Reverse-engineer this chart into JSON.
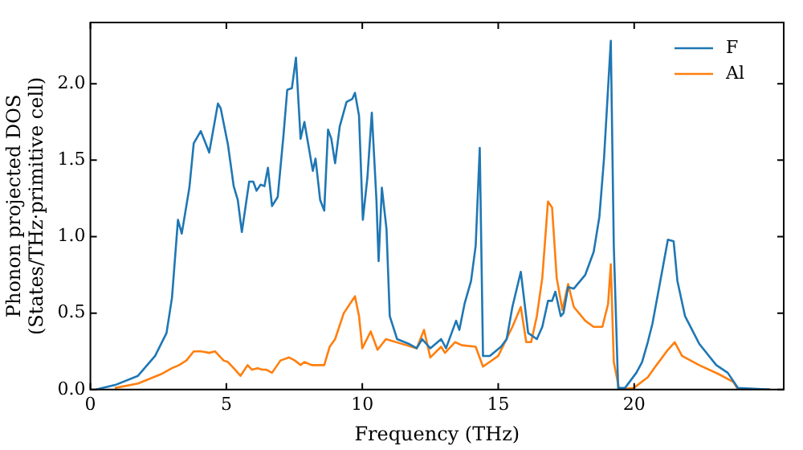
{
  "chart_data": {
    "type": "line",
    "xlabel": "Frequency (THz)",
    "ylabel": "Phonon projected DOS\n(States/THz·primitive cell)",
    "xlim": [
      0,
      25.5
    ],
    "ylim": [
      0,
      2.4
    ],
    "xticks": [
      0,
      5,
      10,
      15,
      20
    ],
    "yticks": [
      {
        "value": 0,
        "label": "0.0"
      },
      {
        "value": 0.5,
        "label": "0.5"
      },
      {
        "value": 1,
        "label": "1.0"
      },
      {
        "value": 1.5,
        "label": "1.5"
      },
      {
        "value": 2,
        "label": "2.0"
      }
    ],
    "grid": false,
    "legend": "top right",
    "marker": "none",
    "line_style": "solid",
    "series": [
      {
        "name": "F",
        "color": "#1f77b4",
        "x": [
          0.2,
          0.91,
          1.75,
          2.38,
          2.8,
          3.0,
          3.22,
          3.36,
          3.64,
          3.8,
          4.06,
          4.37,
          4.69,
          4.79,
          5.06,
          5.27,
          5.42,
          5.57,
          5.84,
          5.99,
          6.11,
          6.26,
          6.4,
          6.53,
          6.68,
          6.89,
          7.1,
          7.24,
          7.41,
          7.56,
          7.73,
          7.87,
          8.18,
          8.28,
          8.45,
          8.6,
          8.74,
          8.86,
          9.0,
          9.17,
          9.42,
          9.63,
          9.73,
          9.88,
          10.02,
          10.19,
          10.35,
          10.52,
          10.6,
          10.72,
          10.89,
          11.01,
          11.28,
          11.7,
          12.0,
          12.2,
          12.5,
          12.9,
          13.08,
          13.45,
          13.57,
          13.76,
          14.0,
          14.17,
          14.32,
          14.44,
          14.69,
          15.1,
          15.31,
          15.52,
          15.83,
          16.1,
          16.42,
          16.62,
          16.83,
          16.98,
          17.1,
          17.3,
          17.4,
          17.57,
          17.78,
          18.2,
          18.51,
          18.72,
          18.89,
          19.14,
          19.25,
          19.41,
          19.66,
          20.08,
          20.29,
          20.5,
          20.67,
          20.92,
          21.24,
          21.45,
          21.59,
          21.87,
          22.39,
          23.02,
          23.44,
          23.82,
          25.0
        ],
        "values": [
          0,
          0.03,
          0.09,
          0.22,
          0.37,
          0.6,
          1.11,
          1.02,
          1.32,
          1.61,
          1.69,
          1.55,
          1.87,
          1.84,
          1.6,
          1.33,
          1.24,
          1.03,
          1.36,
          1.36,
          1.3,
          1.34,
          1.33,
          1.45,
          1.2,
          1.26,
          1.66,
          1.96,
          1.97,
          2.17,
          1.64,
          1.75,
          1.43,
          1.51,
          1.24,
          1.17,
          1.7,
          1.64,
          1.48,
          1.72,
          1.88,
          1.9,
          1.94,
          1.79,
          1.11,
          1.39,
          1.81,
          1.24,
          0.84,
          1.32,
          1.05,
          0.48,
          0.33,
          0.3,
          0.27,
          0.33,
          0.27,
          0.33,
          0.27,
          0.45,
          0.39,
          0.56,
          0.71,
          0.94,
          1.58,
          0.22,
          0.22,
          0.28,
          0.33,
          0.54,
          0.77,
          0.37,
          0.33,
          0.41,
          0.58,
          0.58,
          0.64,
          0.48,
          0.5,
          0.67,
          0.66,
          0.75,
          0.9,
          1.13,
          1.51,
          2.28,
          0.94,
          0.01,
          0.01,
          0.11,
          0.18,
          0.31,
          0.43,
          0.67,
          0.98,
          0.97,
          0.71,
          0.48,
          0.3,
          0.16,
          0.11,
          0.01,
          0
        ]
      },
      {
        "name": "Al",
        "color": "#ff7f0e",
        "x": [
          0.9,
          1.75,
          2.59,
          3.0,
          3.26,
          3.53,
          3.8,
          4.06,
          4.37,
          4.58,
          4.9,
          5.06,
          5.27,
          5.52,
          5.78,
          5.94,
          6.15,
          6.32,
          6.47,
          6.68,
          6.99,
          7.31,
          7.52,
          7.73,
          7.87,
          8.14,
          8.6,
          8.8,
          9.0,
          9.32,
          9.73,
          9.88,
          10.0,
          10.31,
          10.56,
          10.87,
          12.0,
          12.27,
          12.5,
          12.9,
          13.04,
          13.41,
          13.66,
          14.17,
          14.44,
          15.0,
          15.52,
          15.83,
          16.03,
          16.21,
          16.42,
          16.62,
          16.83,
          16.98,
          17.15,
          17.36,
          17.57,
          17.78,
          18.2,
          18.51,
          18.83,
          19.04,
          19.14,
          19.25,
          19.45,
          19.98,
          20.5,
          20.82,
          21.24,
          21.49,
          21.76,
          22.39,
          23.12,
          23.65,
          23.82,
          25.0
        ],
        "values": [
          0.01,
          0.04,
          0.1,
          0.14,
          0.16,
          0.19,
          0.25,
          0.25,
          0.24,
          0.25,
          0.19,
          0.18,
          0.14,
          0.09,
          0.16,
          0.13,
          0.14,
          0.13,
          0.13,
          0.11,
          0.19,
          0.21,
          0.19,
          0.16,
          0.18,
          0.16,
          0.16,
          0.28,
          0.33,
          0.5,
          0.61,
          0.48,
          0.27,
          0.38,
          0.26,
          0.33,
          0.27,
          0.39,
          0.21,
          0.28,
          0.24,
          0.31,
          0.29,
          0.28,
          0.15,
          0.22,
          0.41,
          0.54,
          0.31,
          0.31,
          0.48,
          0.73,
          1.23,
          1.19,
          0.73,
          0.52,
          0.69,
          0.54,
          0.45,
          0.41,
          0.41,
          0.56,
          0.82,
          0.18,
          0,
          0.01,
          0.08,
          0.16,
          0.26,
          0.31,
          0.22,
          0.16,
          0.1,
          0.05,
          0,
          0
        ]
      }
    ]
  }
}
